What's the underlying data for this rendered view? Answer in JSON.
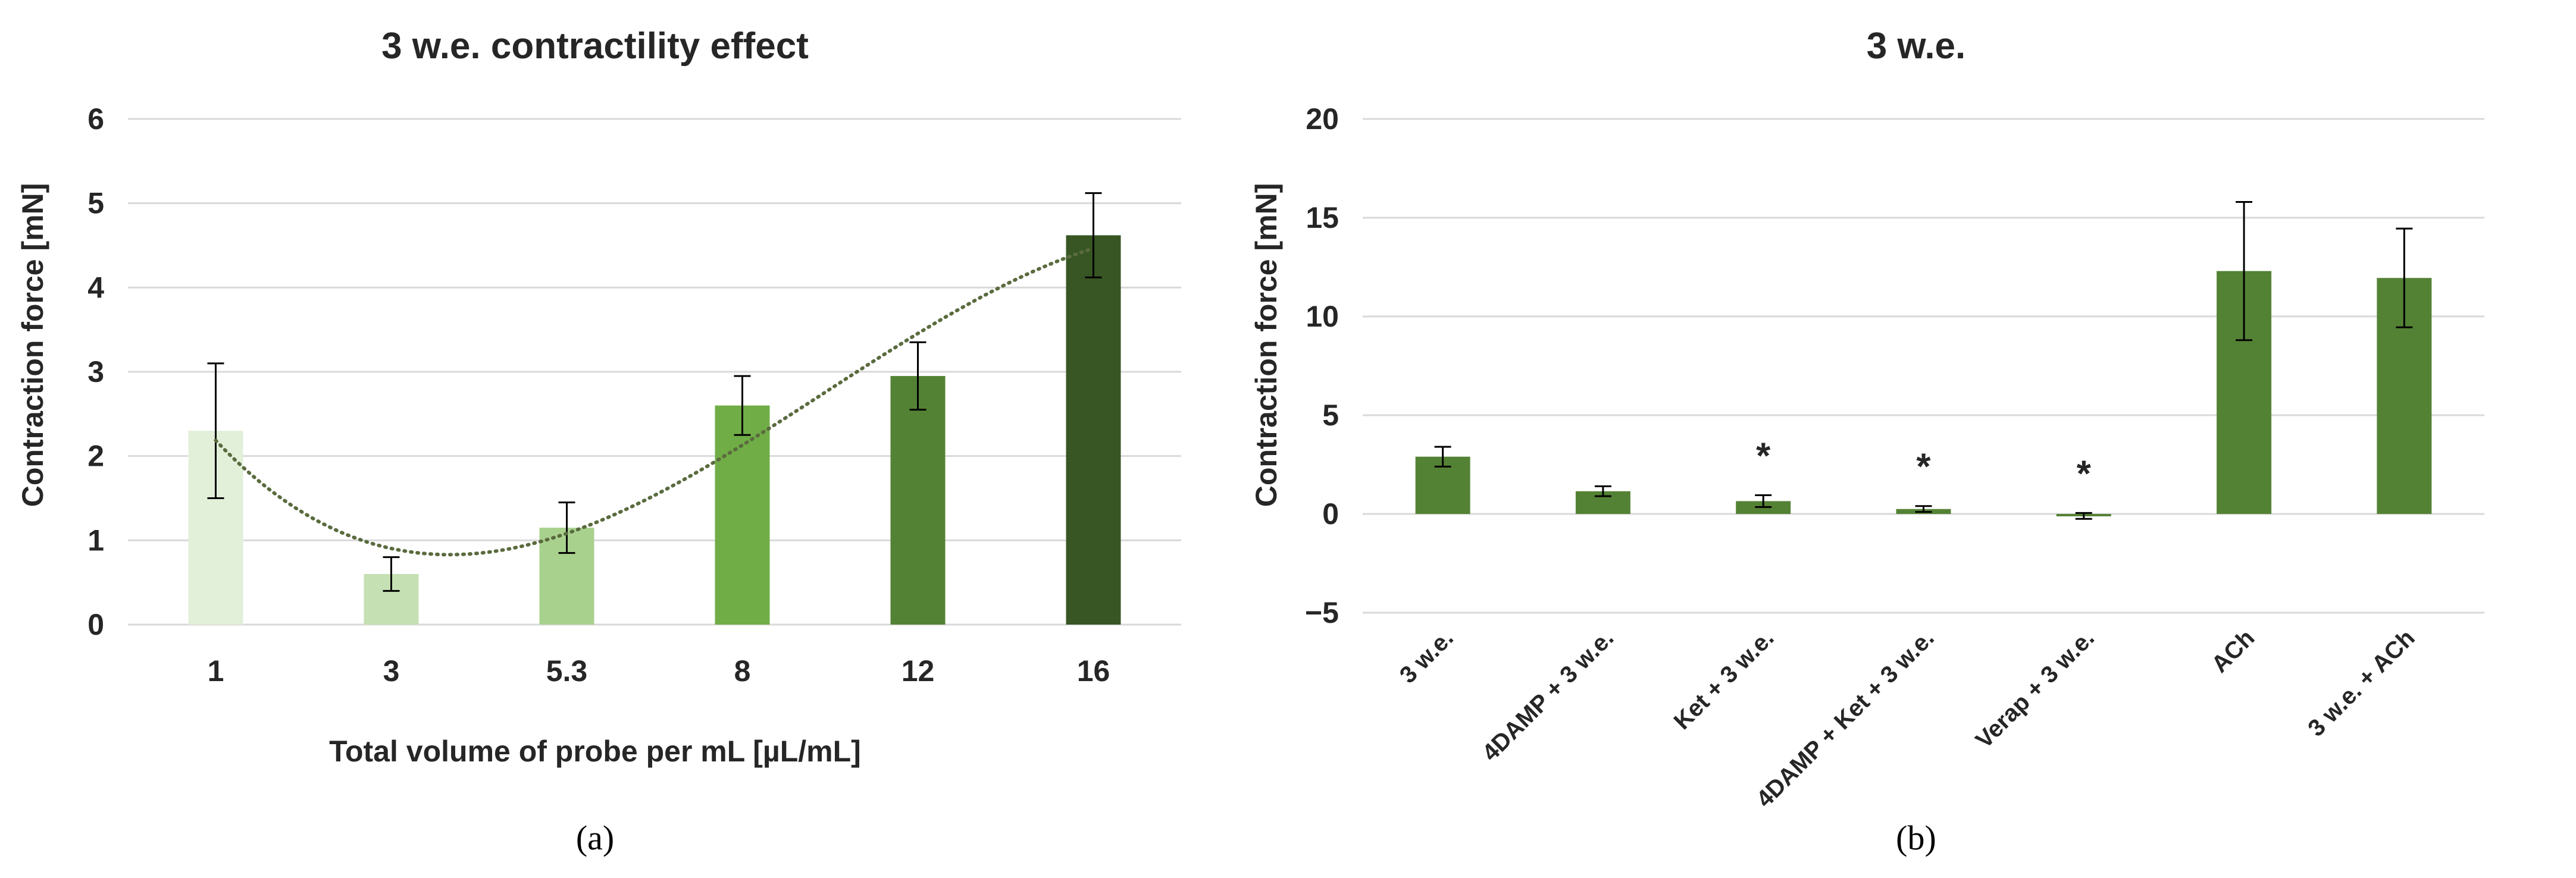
{
  "chart_data": [
    {
      "type": "bar",
      "title": "3 w.e. contractility effect",
      "xlabel": "Total volume of probe per mL [µL/mL]",
      "ylabel": "Contraction force [mN]",
      "ylim": [
        0,
        6
      ],
      "yticks": [
        "0",
        "1",
        "2",
        "3",
        "4",
        "5",
        "6"
      ],
      "grid": true,
      "trendline": true,
      "categories": [
        "1",
        "3",
        "5.3",
        "8",
        "12",
        "16"
      ],
      "values": [
        2.3,
        0.6,
        1.15,
        2.6,
        2.95,
        4.62
      ],
      "errors": [
        0.8,
        0.2,
        0.3,
        0.35,
        0.4,
        0.5
      ],
      "colors": [
        "#e2efd9",
        "#c5e0b3",
        "#a9d18e",
        "#70ad47",
        "#548235",
        "#375623"
      ],
      "panel_label": "(a)"
    },
    {
      "type": "bar",
      "title": "3 w.e.",
      "xlabel": "",
      "ylabel": "Contraction force [mN]",
      "ylim": [
        -5,
        20
      ],
      "yticks": [
        "−5",
        "0",
        "5",
        "10",
        "15",
        "20"
      ],
      "grid": true,
      "categories": [
        "3 w.e.",
        "4DAMP + 3 w.e.",
        "Ket + 3 w.e.",
        "4DAMP + Ket + 3 w.e.",
        "Verap + 3 w.e.",
        "ACh",
        "3 w.e. + ACh"
      ],
      "values": [
        2.9,
        1.15,
        0.65,
        0.25,
        -0.1,
        12.3,
        11.95
      ],
      "errors": [
        0.5,
        0.25,
        0.3,
        0.15,
        0.15,
        3.5,
        2.5
      ],
      "significance": [
        "",
        "",
        "*",
        "*",
        "*",
        "",
        ""
      ],
      "color": "#548235",
      "panel_label": "(b)"
    }
  ]
}
